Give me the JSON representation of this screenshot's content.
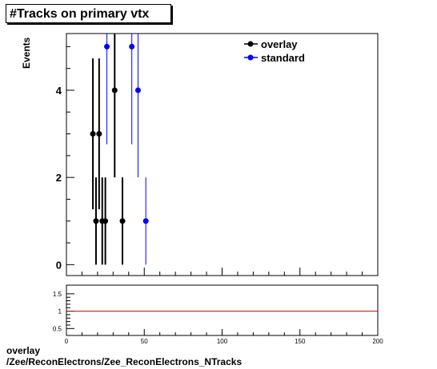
{
  "title": "#Tracks on primary vtx",
  "caption": {
    "line1": "overlay",
    "line2": "/Zee/ReconElectrons/Zee_ReconElectrons_NTracks"
  },
  "chart_data": [
    {
      "type": "scatter",
      "ylabel": "Events",
      "xlim": [
        0,
        200
      ],
      "ylim": [
        -0.25,
        5.3
      ],
      "yticks": [
        0,
        2,
        4
      ],
      "legend_position": "top-right",
      "series": [
        {
          "name": "overlay",
          "color": "#000000",
          "points": [
            {
              "x": 17,
              "y": 3,
              "err": 1.73
            },
            {
              "x": 19,
              "y": 1,
              "err": 1.0
            },
            {
              "x": 21,
              "y": 3,
              "err": 1.73
            },
            {
              "x": 23,
              "y": 1,
              "err": 1.0
            },
            {
              "x": 25,
              "y": 1,
              "err": 1.0
            },
            {
              "x": 31,
              "y": 4,
              "err": 2.0
            },
            {
              "x": 36,
              "y": 1,
              "err": 1.0
            }
          ]
        },
        {
          "name": "standard",
          "color": "#0000ff",
          "points": [
            {
              "x": 26,
              "y": 5,
              "err": 2.24
            },
            {
              "x": 42,
              "y": 5,
              "err": 2.24
            },
            {
              "x": 46,
              "y": 4,
              "err": 2.0
            },
            {
              "x": 51,
              "y": 1,
              "err": 1.0
            }
          ]
        }
      ]
    },
    {
      "type": "line",
      "xlim": [
        0,
        200
      ],
      "ylim": [
        0.3,
        1.75
      ],
      "yticks": [
        0.5,
        1,
        1.5
      ],
      "xticks": [
        0,
        50,
        100,
        150,
        200
      ],
      "xlabel": "",
      "reference_line": {
        "y": 1,
        "color": "#cc0000"
      }
    }
  ]
}
